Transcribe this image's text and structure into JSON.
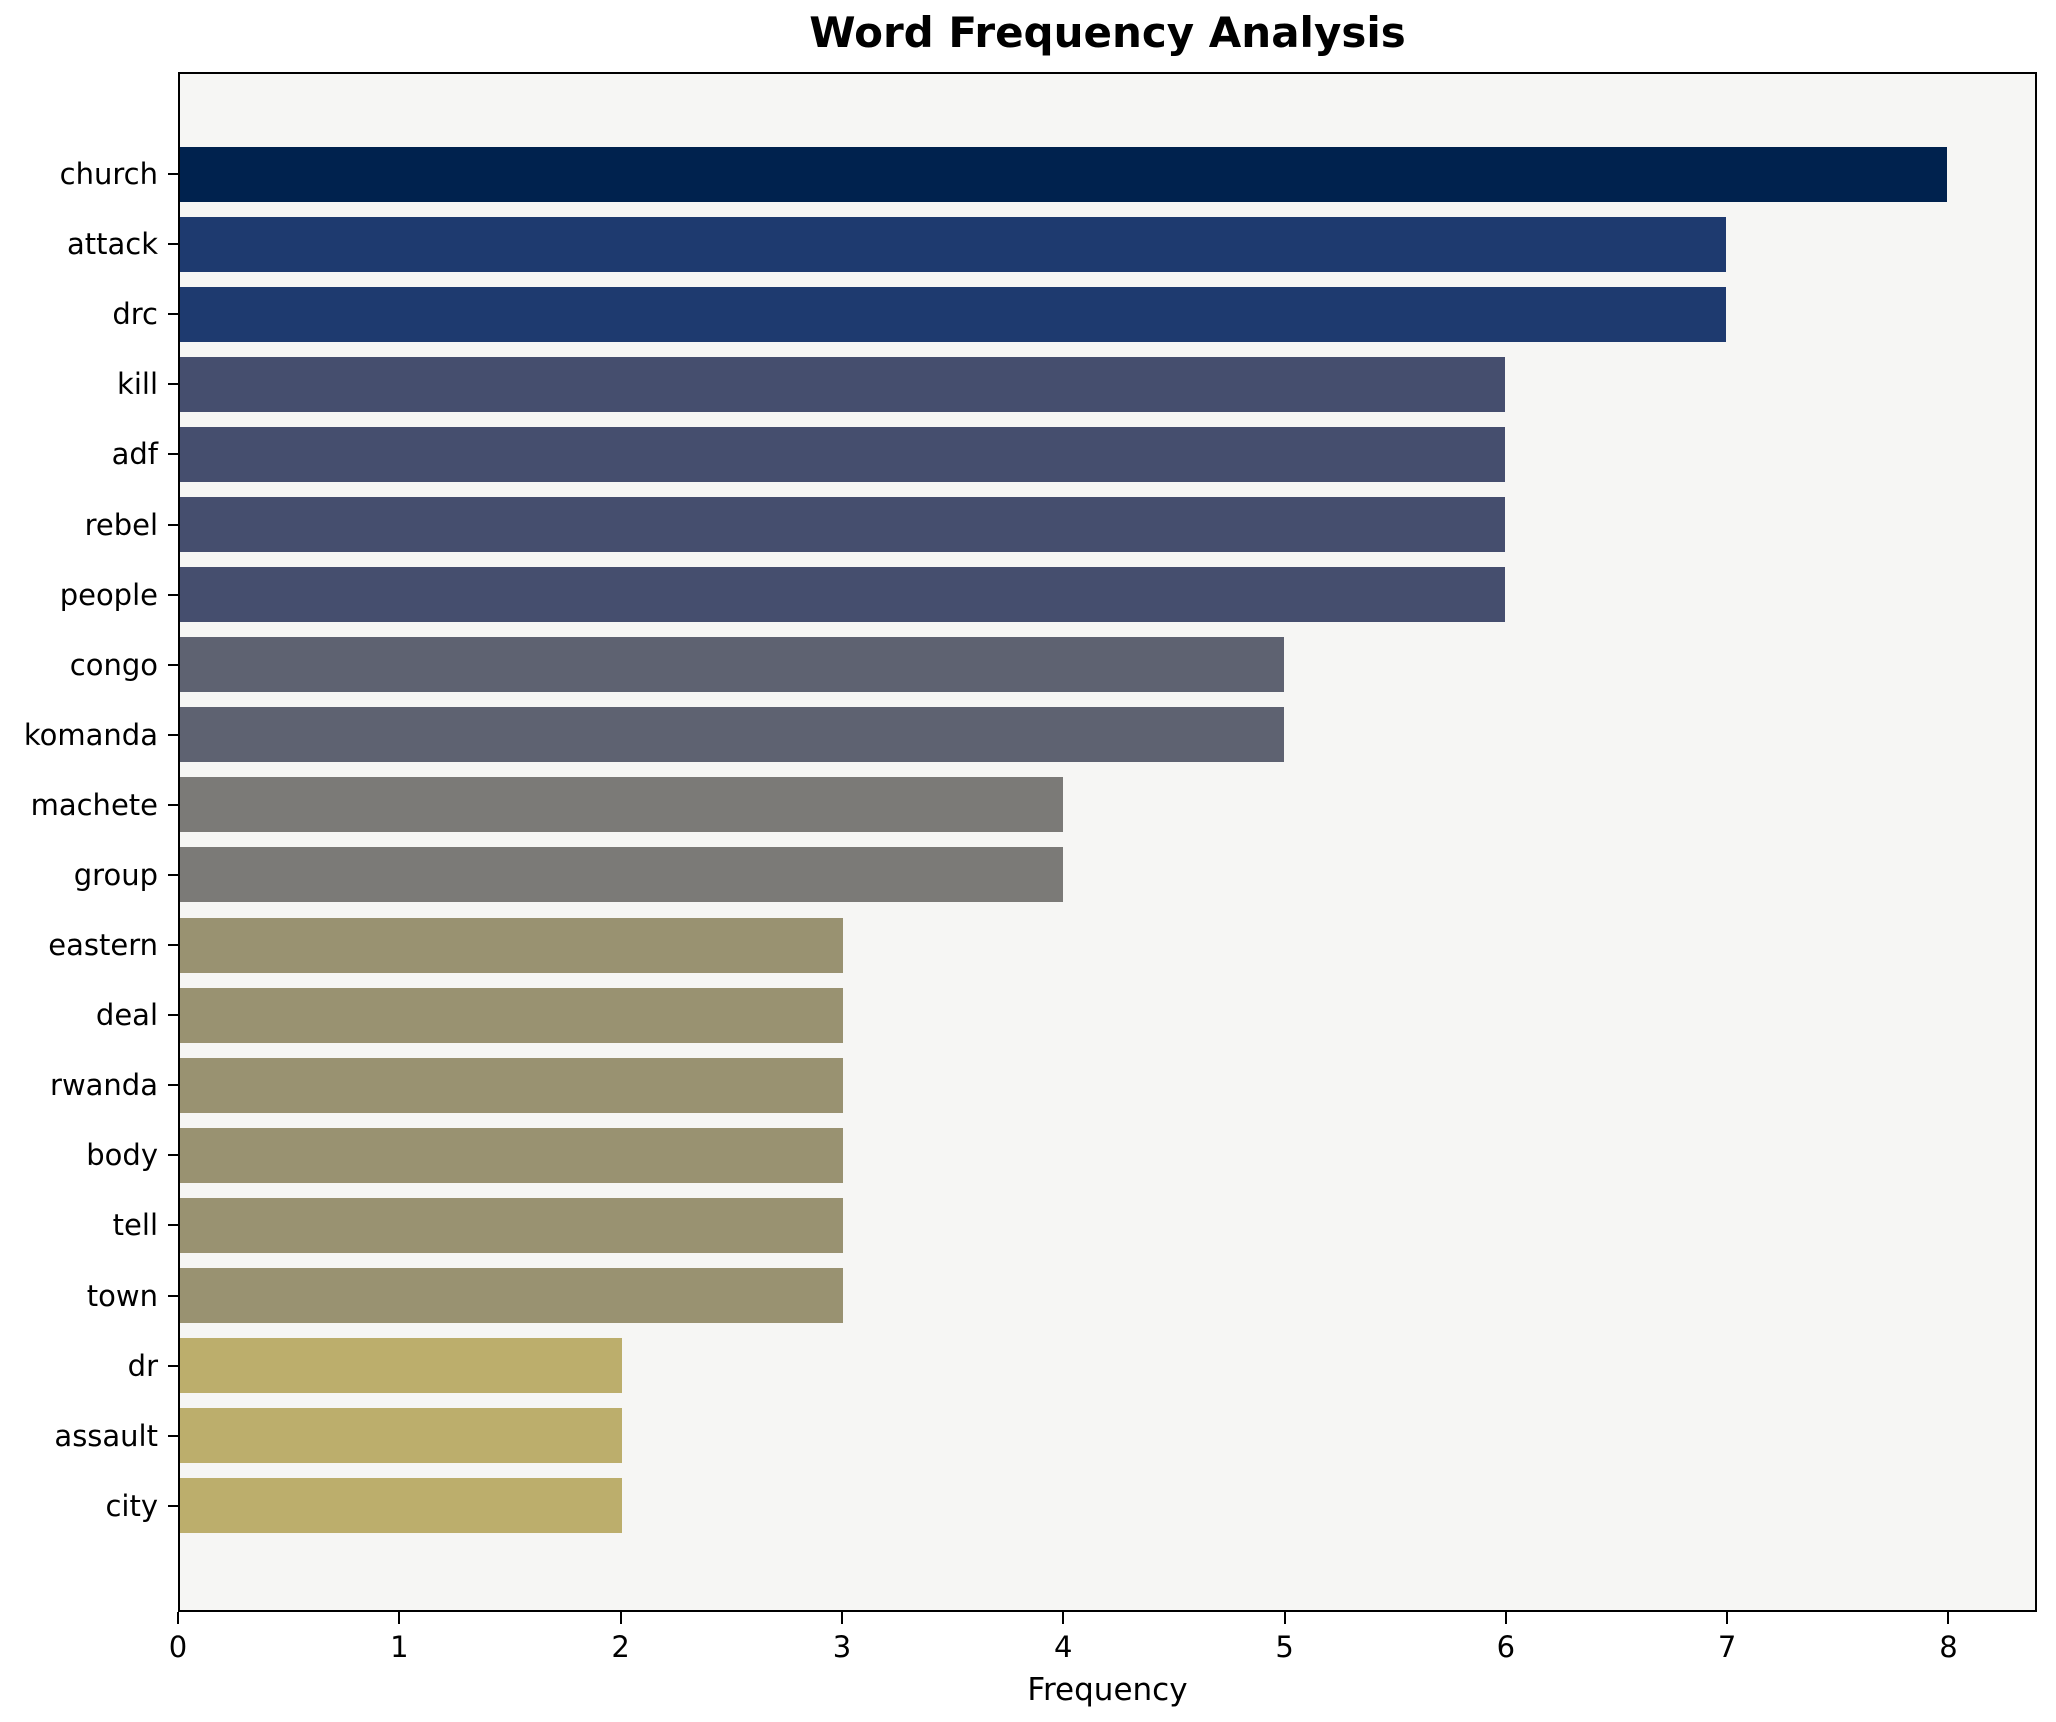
{
  "chart_data": {
    "type": "bar",
    "orientation": "horizontal",
    "title": "Word Frequency Analysis",
    "xlabel": "Frequency",
    "ylabel": "",
    "categories": [
      "church",
      "attack",
      "drc",
      "kill",
      "adf",
      "rebel",
      "people",
      "congo",
      "komanda",
      "machete",
      "group",
      "eastern",
      "deal",
      "rwanda",
      "body",
      "tell",
      "town",
      "dr",
      "assault",
      "city"
    ],
    "values": [
      8,
      7,
      7,
      6,
      6,
      6,
      6,
      5,
      5,
      4,
      4,
      3,
      3,
      3,
      3,
      3,
      3,
      2,
      2,
      2
    ],
    "bar_colors": [
      "#00224e",
      "#1e3a6f",
      "#1e3a6f",
      "#454e6e",
      "#454e6e",
      "#454e6e",
      "#454e6e",
      "#5e6271",
      "#5e6271",
      "#7b7a77",
      "#7b7a77",
      "#999271",
      "#999271",
      "#999271",
      "#999271",
      "#999271",
      "#999271",
      "#bcae6c",
      "#bcae6c",
      "#bcae6c"
    ],
    "xticks": [
      0,
      1,
      2,
      3,
      4,
      5,
      6,
      7,
      8
    ],
    "xlim": [
      0,
      8.4
    ],
    "grid": false,
    "legend": null,
    "plot_background": "#f6f6f4",
    "figure_background": "#ffffff",
    "spine_color": "#000000"
  }
}
